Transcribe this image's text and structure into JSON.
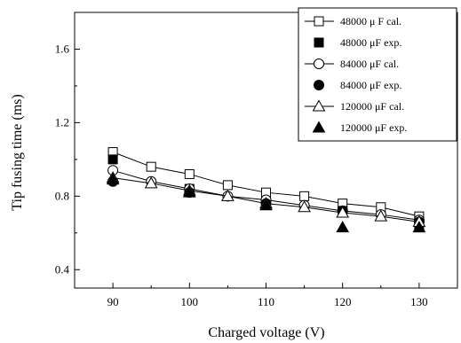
{
  "chart_data": {
    "type": "line",
    "xlabel": "Charged voltage (V)",
    "ylabel": "Tip fusing time (ms)",
    "xlim": [
      85,
      135
    ],
    "ylim": [
      0.3,
      1.8
    ],
    "xticks": [
      90,
      100,
      110,
      120,
      130
    ],
    "yticks": [
      0.4,
      0.8,
      1.2,
      1.6
    ],
    "xtick_labels": [
      "90",
      "100",
      "110",
      "120",
      "130"
    ],
    "ytick_labels": [
      "0.4",
      "0.8",
      "1.2",
      "1.6"
    ],
    "grid": false,
    "legend_position": "top-right",
    "series": [
      {
        "name": "48000 μ F cal.",
        "marker": "square-open",
        "line": true,
        "x": [
          90,
          95,
          100,
          105,
          110,
          115,
          120,
          125,
          130
        ],
        "y": [
          1.04,
          0.96,
          0.92,
          0.86,
          0.82,
          0.8,
          0.76,
          0.74,
          0.69
        ]
      },
      {
        "name": "48000 μF exp.",
        "marker": "square-filled",
        "line": false,
        "x": [
          90,
          100,
          110,
          120,
          130
        ],
        "y": [
          1.0,
          0.84,
          0.77,
          0.72,
          0.63
        ]
      },
      {
        "name": "84000 μF cal.",
        "marker": "circle-open",
        "line": true,
        "x": [
          90,
          95,
          100,
          105,
          110,
          115,
          120,
          125,
          130
        ],
        "y": [
          0.94,
          0.88,
          0.84,
          0.8,
          0.78,
          0.75,
          0.72,
          0.7,
          0.67
        ]
      },
      {
        "name": "84000 μF exp.",
        "marker": "circle-filled",
        "line": false,
        "x": [
          90,
          100,
          110,
          120,
          130
        ],
        "y": [
          0.88,
          0.82,
          0.76,
          0.72,
          0.66
        ]
      },
      {
        "name": "120000  μF cal.",
        "marker": "triangle-open",
        "line": true,
        "x": [
          90,
          95,
          100,
          105,
          110,
          115,
          120,
          125,
          130
        ],
        "y": [
          0.9,
          0.87,
          0.83,
          0.8,
          0.76,
          0.74,
          0.71,
          0.69,
          0.66
        ]
      },
      {
        "name": "120000  μF exp.",
        "marker": "triangle-filled",
        "line": false,
        "x": [
          90,
          100,
          110,
          120,
          130
        ],
        "y": [
          0.89,
          0.82,
          0.75,
          0.63,
          0.63
        ]
      }
    ]
  }
}
